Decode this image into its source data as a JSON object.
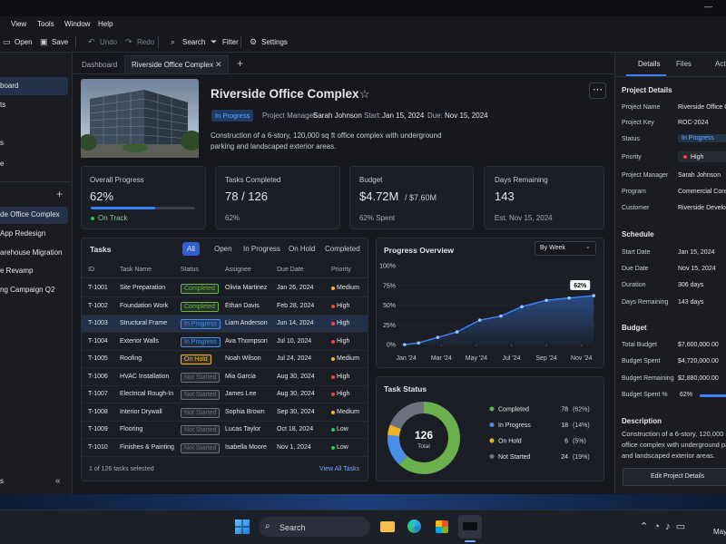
{
  "window": {
    "menu": [
      "View",
      "Tools",
      "Window",
      "Help"
    ],
    "toolbar": [
      "Open",
      "Save",
      "Undo",
      "Redo",
      "Search",
      "Filter",
      "Settings"
    ]
  },
  "sidebar": {
    "nav": [
      "board",
      "ts",
      "s",
      "e"
    ],
    "projects": [
      "de Office Complex",
      "App Redesign",
      "arehouse Migration",
      "e Revamp",
      "ng Campaign Q2"
    ],
    "footer": "s"
  },
  "tabs": [
    "Dashboard",
    "Riverside Office Complex"
  ],
  "project": {
    "title": "Riverside Office Complex",
    "status": "In Progress",
    "manager_label": "Project Manager:",
    "manager": "Sarah Johnson",
    "start_label": "Start:",
    "start": "Jan 15, 2024",
    "due_label": "Due:",
    "due": "Nov 15, 2024",
    "description": "Construction of a 6-story, 120,000 sq ft office complex with underground parking and landscaped exterior areas."
  },
  "kpis": {
    "progress": {
      "label": "Overall Progress",
      "value": 62,
      "value_label": "62%",
      "note": "On Track"
    },
    "tasks": {
      "label": "Tasks Completed",
      "main": "78 / 126",
      "note": "62%"
    },
    "budget": {
      "label": "Budget",
      "main": "$4.72M",
      "secondary": "/ $7.60M",
      "note": "62% Spent"
    },
    "days": {
      "label": "Days Remaining",
      "main": "143",
      "note": "Est. Nov 15, 2024"
    }
  },
  "tasks": {
    "title": "Tasks",
    "filters": [
      "All",
      "Open",
      "In Progress",
      "On Hold",
      "Completed"
    ],
    "active_filter": 0,
    "columns": [
      "ID",
      "Task Name",
      "Status",
      "Assignee",
      "Due Date",
      "Priority"
    ],
    "priority_colors": {
      "Medium": "#f0b429",
      "High": "#ef4444",
      "Low": "#22c55e"
    },
    "selected_row": 2,
    "rows": [
      [
        "T-1001",
        "Site Preparation",
        "Completed",
        "Olivia Martinez",
        "Jan 26, 2024",
        "Medium"
      ],
      [
        "T-1002",
        "Foundation Work",
        "Completed",
        "Ethan Davis",
        "Feb 28, 2024",
        "High"
      ],
      [
        "T-1003",
        "Structural Frame",
        "In Progress",
        "Liam Anderson",
        "Jun 14, 2024",
        "High"
      ],
      [
        "T-1004",
        "Exterior Walls",
        "In Progress",
        "Ava Thompson",
        "Jul 10, 2024",
        "High"
      ],
      [
        "T-1005",
        "Roofing",
        "On Hold",
        "Noah Wilson",
        "Jul 24, 2024",
        "Medium"
      ],
      [
        "T-1006",
        "HVAC Installation",
        "Not Started",
        "Mia Garcia",
        "Aug 30, 2024",
        "High"
      ],
      [
        "T-1007",
        "Electrical Rough-In",
        "Not Started",
        "James Lee",
        "Aug 30, 2024",
        "High"
      ],
      [
        "T-1008",
        "Interior Drywall",
        "Not Started",
        "Sophia Brown",
        "Sep 30, 2024",
        "Medium"
      ],
      [
        "T-1009",
        "Flooring",
        "Not Started",
        "Lucas Taylor",
        "Oct 18, 2024",
        "Low"
      ],
      [
        "T-1010",
        "Finishes & Painting",
        "Not Started",
        "Isabella Moore",
        "Nov 1, 2024",
        "Low"
      ]
    ],
    "footer": "1 of 126 tasks selected",
    "link": "View All Tasks"
  },
  "progress_overview": {
    "title": "Progress Overview",
    "dropdown": "By Week",
    "chart": {
      "type": "line",
      "color": "#3b82f6",
      "x": [
        0.9,
        1.7,
        2.8,
        3.9,
        5.2,
        6.4,
        7.6,
        9.0,
        10.3,
        11.7
      ],
      "values": [
        0,
        2,
        9,
        16,
        31,
        36,
        48,
        56,
        59,
        62
      ],
      "value_labels": [
        null,
        null,
        null,
        null,
        null,
        null,
        null,
        null,
        null,
        "62%"
      ],
      "xlim": [
        0.5,
        12
      ],
      "ylim": [
        0,
        100
      ],
      "xticks": [
        {
          "value": 1,
          "label": "Jan '24"
        },
        {
          "value": 3,
          "label": "Mar '24"
        },
        {
          "value": 5,
          "label": "May '24"
        },
        {
          "value": 7,
          "label": "Jul '24"
        },
        {
          "value": 9,
          "label": "Sep '24"
        },
        {
          "value": 11,
          "label": "Nov '24"
        }
      ],
      "yticks": [
        {
          "value": 0,
          "label": "0%"
        },
        {
          "value": 25,
          "label": "25%"
        },
        {
          "value": 50,
          "label": "50%"
        },
        {
          "value": 75,
          "label": "75%"
        },
        {
          "value": 100,
          "label": "100%"
        }
      ],
      "grid": true
    }
  },
  "task_status": {
    "title": "Task Status",
    "type": "donut",
    "total": 126,
    "total_label": "Total",
    "items": [
      {
        "name": "Completed",
        "value": 78,
        "percent_label": "(62%)",
        "color": "#6ab04c"
      },
      {
        "name": "In Progress",
        "value": 18,
        "percent_label": "(14%)",
        "color": "#4a8fe7"
      },
      {
        "name": "On Hold",
        "value": 6,
        "percent_label": "(5%)",
        "color": "#f0b429"
      },
      {
        "name": "Not Started",
        "value": 24,
        "percent_label": "(19%)",
        "color": "#6b7280"
      }
    ]
  },
  "details": {
    "tabs": [
      "Details",
      "Files",
      "Acti"
    ],
    "sections": [
      {
        "title": "Project Details",
        "rows": [
          [
            "Project Name",
            "Riverside Office C"
          ],
          [
            "Project Key",
            "ROC-2024"
          ],
          [
            "Status",
            "In Progress"
          ],
          [
            "Priority",
            "High"
          ],
          [
            "Project Manager",
            "Sarah Johnson"
          ],
          [
            "Program",
            "Commercial Cons"
          ],
          [
            "Customer",
            "Riverside Develop"
          ]
        ]
      },
      {
        "title": "Schedule",
        "rows": [
          [
            "Start Date",
            "Jan 15, 2024"
          ],
          [
            "Due Date",
            "Nov 15, 2024"
          ],
          [
            "Duration",
            "306 days"
          ],
          [
            "Days Remaining",
            "143 days"
          ]
        ]
      },
      {
        "title": "Budget",
        "rows": [
          [
            "Total Budget",
            "$7,600,000.00"
          ],
          [
            "Budget Spent",
            "$4,720,000.00"
          ],
          [
            "Budget Remaining",
            "$2,880,000.00"
          ]
        ]
      }
    ],
    "budget_spent": {
      "label": "Budget Spent %",
      "value": 62,
      "value_label": "62%"
    },
    "description_title": "Description",
    "description": "Construction of a 6-story, 120,000 sq ft office complex with underground parking and landscaped exterior areas.",
    "button": "Edit Project Details"
  },
  "taskbar": {
    "search": "Search",
    "clock": "May"
  }
}
